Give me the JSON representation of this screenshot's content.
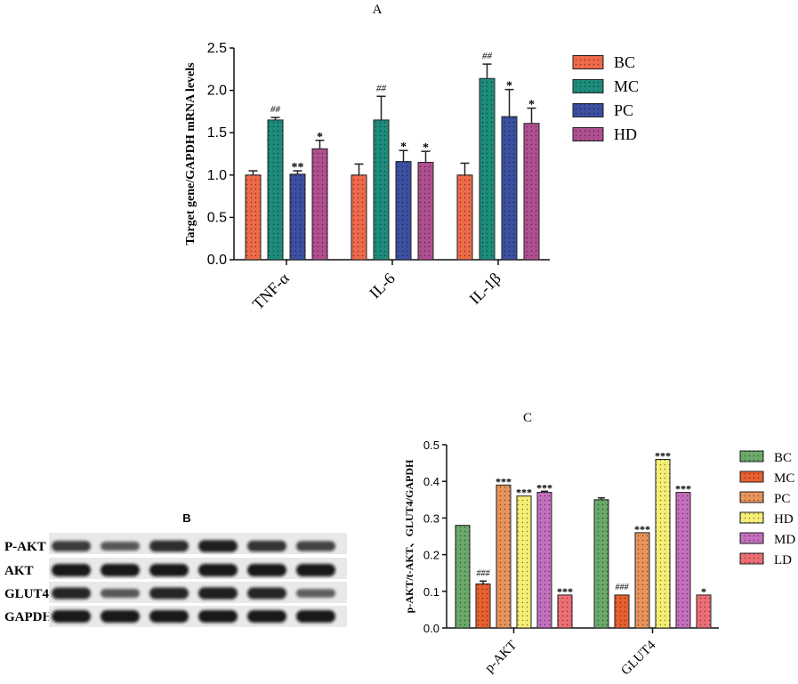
{
  "chart_data": [
    {
      "panel": "A",
      "type": "bar",
      "title": "A",
      "xlabel": "",
      "ylabel": "Target gene/GAPDH mRNA levels",
      "ylim": [
        0,
        2.5
      ],
      "yticks": [
        "0.0",
        "0.5",
        "1.0",
        "1.5",
        "2.0",
        "2.5"
      ],
      "categories": [
        "TNF-α",
        "IL-6",
        "IL-1β"
      ],
      "series": [
        {
          "name": "BC",
          "color": "#ee6a4a",
          "values": [
            1.0,
            1.0,
            1.0
          ],
          "errors": [
            0.05,
            0.13,
            0.14
          ],
          "labels": [
            "",
            "",
            ""
          ]
        },
        {
          "name": "MC",
          "color": "#1d8c7b",
          "values": [
            1.65,
            1.65,
            2.14
          ],
          "errors": [
            0.03,
            0.28,
            0.17
          ],
          "labels": [
            "##",
            "##",
            "##"
          ]
        },
        {
          "name": "PC",
          "color": "#3c4fa1",
          "values": [
            1.01,
            1.16,
            1.69
          ],
          "errors": [
            0.04,
            0.13,
            0.32
          ],
          "labels": [
            "**",
            "*",
            "*"
          ]
        },
        {
          "name": "HD",
          "color": "#b04f90",
          "values": [
            1.31,
            1.15,
            1.61
          ],
          "errors": [
            0.1,
            0.13,
            0.18
          ],
          "labels": [
            "*",
            "*",
            "*"
          ]
        }
      ],
      "legend_position": "right",
      "grid": false
    },
    {
      "panel": "C",
      "type": "bar",
      "title": "C",
      "xlabel": "",
      "ylabel": "p-AKT/t-AKT、GLUT4/GAPDH",
      "ylim": [
        0,
        0.5
      ],
      "yticks": [
        "0.0",
        "0.1",
        "0.2",
        "0.3",
        "0.4",
        "0.5"
      ],
      "categories": [
        "p-AKT",
        "GLUT4"
      ],
      "series": [
        {
          "name": "BC",
          "color": "#6aa96a",
          "values": [
            0.28,
            0.35
          ],
          "errors": [
            0.0,
            0.005
          ],
          "labels": [
            "",
            ""
          ]
        },
        {
          "name": "MC",
          "color": "#e8602f",
          "values": [
            0.12,
            0.09
          ],
          "errors": [
            0.008,
            0.0
          ],
          "labels": [
            "###",
            "###"
          ]
        },
        {
          "name": "PC",
          "color": "#e8935a",
          "values": [
            0.39,
            0.26
          ],
          "errors": [
            0.0,
            0.0
          ],
          "labels": [
            "***",
            "***"
          ]
        },
        {
          "name": "HD",
          "color": "#f4ef74",
          "values": [
            0.36,
            0.46
          ],
          "errors": [
            0.0,
            0.0
          ],
          "labels": [
            "***",
            "***"
          ]
        },
        {
          "name": "MD",
          "color": "#c46fbe",
          "values": [
            0.37,
            0.37
          ],
          "errors": [
            0.003,
            0.0
          ],
          "labels": [
            "***",
            "***"
          ]
        },
        {
          "name": "LD",
          "color": "#ee6e74",
          "values": [
            0.09,
            0.09
          ],
          "errors": [
            0.0,
            0.0
          ],
          "labels": [
            "***",
            "*"
          ]
        }
      ],
      "legend_position": "right",
      "grid": false
    }
  ],
  "blot": {
    "title": "B",
    "rows": [
      {
        "label": "P-AKT",
        "intensity": [
          0.75,
          0.55,
          0.85,
          0.95,
          0.8,
          0.7
        ]
      },
      {
        "label": "AKT",
        "intensity": [
          1.0,
          1.0,
          1.0,
          1.0,
          1.0,
          1.0
        ]
      },
      {
        "label": "GLUT4",
        "intensity": [
          0.9,
          0.55,
          0.9,
          0.95,
          0.9,
          0.5
        ]
      },
      {
        "label": "GAPDH",
        "intensity": [
          1.0,
          1.0,
          1.0,
          1.0,
          1.0,
          1.0
        ]
      }
    ]
  }
}
